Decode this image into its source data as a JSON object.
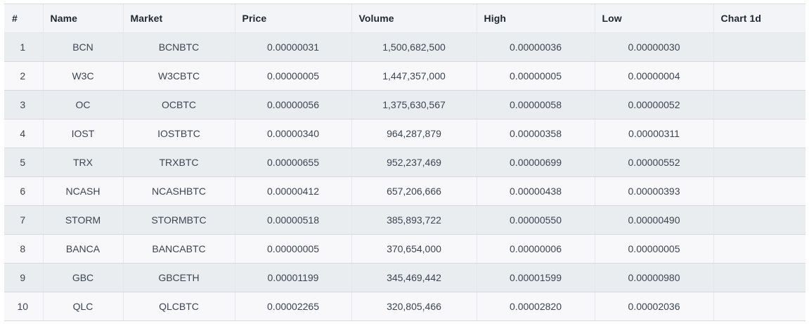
{
  "table": {
    "headers": [
      "#",
      "Name",
      "Market",
      "Price",
      "Volume",
      "High",
      "Low",
      "Chart 1d"
    ],
    "rows": [
      {
        "idx": "1",
        "name": "BCN",
        "market": "BCNBTC",
        "price": "0.00000031",
        "volume": "1,500,682,500",
        "high": "0.00000036",
        "low": "0.00000030",
        "chart": ""
      },
      {
        "idx": "2",
        "name": "W3C",
        "market": "W3CBTC",
        "price": "0.00000005",
        "volume": "1,447,357,000",
        "high": "0.00000005",
        "low": "0.00000004",
        "chart": ""
      },
      {
        "idx": "3",
        "name": "OC",
        "market": "OCBTC",
        "price": "0.00000056",
        "volume": "1,375,630,567",
        "high": "0.00000058",
        "low": "0.00000052",
        "chart": ""
      },
      {
        "idx": "4",
        "name": "IOST",
        "market": "IOSTBTC",
        "price": "0.00000340",
        "volume": "964,287,879",
        "high": "0.00000358",
        "low": "0.00000311",
        "chart": ""
      },
      {
        "idx": "5",
        "name": "TRX",
        "market": "TRXBTC",
        "price": "0.00000655",
        "volume": "952,237,469",
        "high": "0.00000699",
        "low": "0.00000552",
        "chart": ""
      },
      {
        "idx": "6",
        "name": "NCASH",
        "market": "NCASHBTC",
        "price": "0.00000412",
        "volume": "657,206,666",
        "high": "0.00000438",
        "low": "0.00000393",
        "chart": ""
      },
      {
        "idx": "7",
        "name": "STORM",
        "market": "STORMBTC",
        "price": "0.00000518",
        "volume": "385,893,722",
        "high": "0.00000550",
        "low": "0.00000490",
        "chart": ""
      },
      {
        "idx": "8",
        "name": "BANCA",
        "market": "BANCABTC",
        "price": "0.00000005",
        "volume": "370,654,000",
        "high": "0.00000006",
        "low": "0.00000005",
        "chart": ""
      },
      {
        "idx": "9",
        "name": "GBC",
        "market": "GBCETH",
        "price": "0.00001199",
        "volume": "345,469,442",
        "high": "0.00001599",
        "low": "0.00000980",
        "chart": ""
      },
      {
        "idx": "10",
        "name": "QLC",
        "market": "QLCBTC",
        "price": "0.00002265",
        "volume": "320,805,466",
        "high": "0.00002820",
        "low": "0.00002036",
        "chart": ""
      }
    ]
  }
}
